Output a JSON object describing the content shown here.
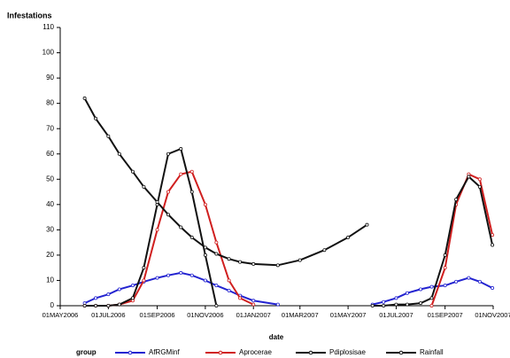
{
  "chart_data": {
    "type": "line",
    "y_label": "Infestations",
    "x_label": "date",
    "legend_title": "group",
    "x": [
      "2006-06-01",
      "2006-06-15",
      "2006-07-01",
      "2006-07-15",
      "2006-08-01",
      "2006-08-15",
      "2006-09-01",
      "2006-09-15",
      "2006-10-01",
      "2006-10-15",
      "2006-11-01",
      "2006-11-15",
      "2006-12-01",
      "2006-12-15",
      "2007-01-01",
      "2007-02-01",
      "2007-03-01",
      "2007-04-01",
      "2007-05-01",
      "2007-05-25",
      "2007-06-01",
      "2007-06-15",
      "2007-07-01",
      "2007-07-15",
      "2007-08-01",
      "2007-08-15",
      "2007-09-01",
      "2007-09-15",
      "2007-10-01",
      "2007-10-15",
      "2007-10-31"
    ],
    "series": [
      {
        "name": "AfRGMinf",
        "color": "#2323d0",
        "values": [
          1,
          3,
          4.5,
          6.5,
          8,
          9.5,
          11,
          12,
          13,
          12,
          10,
          8,
          6,
          4,
          2,
          0.5,
          null,
          null,
          null,
          null,
          0.5,
          1.5,
          3,
          5,
          6.5,
          7.5,
          8,
          9.5,
          11,
          9.5,
          7
        ]
      },
      {
        "name": "Aprocerae",
        "color": "#d01f1f",
        "values": [
          0,
          0,
          0,
          0.5,
          2,
          10,
          30,
          45,
          52,
          53,
          40,
          25,
          10,
          3,
          0.5,
          null,
          null,
          null,
          null,
          null,
          null,
          null,
          null,
          null,
          null,
          0,
          15,
          40,
          52,
          50,
          28
        ]
      },
      {
        "name": "Pdiplosisae",
        "color": "#111111",
        "values": [
          0,
          0,
          0,
          0.5,
          3,
          15,
          40,
          60,
          62,
          45,
          20,
          0,
          null,
          null,
          null,
          null,
          null,
          null,
          null,
          null,
          0,
          0,
          0.5,
          0.5,
          1,
          3,
          20,
          42,
          51,
          47,
          24
        ]
      },
      {
        "name": "Rainfall",
        "color": "#111111",
        "values": [
          82,
          74,
          67,
          60,
          53,
          47,
          41,
          36,
          31,
          27,
          23,
          20.5,
          18.5,
          17.3,
          16.5,
          16,
          18,
          22,
          27,
          32,
          null,
          null,
          null,
          null,
          null,
          null,
          null,
          null,
          null,
          null,
          null
        ]
      }
    ],
    "xlim": [
      "2006-05-01",
      "2007-11-01"
    ],
    "xticks": [
      {
        "value": "2006-05-01",
        "label": "01MAY2006"
      },
      {
        "value": "2006-07-01",
        "label": "01JUL2006"
      },
      {
        "value": "2006-09-01",
        "label": "01SEP2006"
      },
      {
        "value": "2006-11-01",
        "label": "01NOV2006"
      },
      {
        "value": "2007-01-01",
        "label": "01JAN2007"
      },
      {
        "value": "2007-03-01",
        "label": "01MAR2007"
      },
      {
        "value": "2007-05-01",
        "label": "01MAY2007"
      },
      {
        "value": "2007-07-01",
        "label": "01JUL2007"
      },
      {
        "value": "2007-09-01",
        "label": "01SEP2007"
      },
      {
        "value": "2007-11-01",
        "label": "01NOV2007"
      }
    ],
    "ylim": [
      0,
      110
    ],
    "yticks": [
      0,
      10,
      20,
      30,
      40,
      50,
      60,
      70,
      80,
      90,
      100,
      110
    ],
    "grid": false
  }
}
